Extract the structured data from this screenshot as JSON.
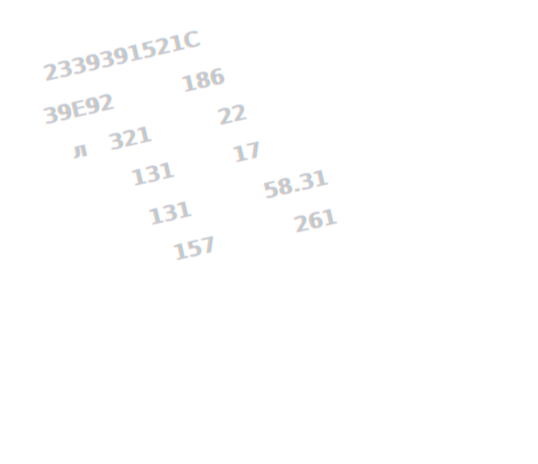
{
  "lines": {
    "header": "2339391521Ⅽ",
    "row1": {
      "left": "39E92",
      "right": "186"
    },
    "row2": {
      "marker": "л",
      "left": "321",
      "right": "22"
    },
    "row3": {
      "left": "131",
      "right": "17"
    },
    "row4": {
      "left": "131",
      "right": "58.31"
    },
    "row5": {
      "left": "157",
      "right": "261"
    }
  }
}
